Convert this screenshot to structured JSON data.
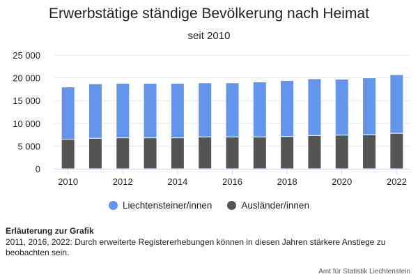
{
  "title": "Erwerbstätige ständige Bevölkerung nach Heimat",
  "subtitle": "seit 2010",
  "colors": {
    "liechtensteiner": "#6495ED",
    "auslaender": "#545454",
    "grid": "#e6e6e6",
    "axis": "#ccd6eb"
  },
  "note": {
    "heading": "Erläuterung zur Grafik",
    "text": "2011, 2016, 2022: Durch erweiterte Registererhebungen können in diesen Jahren stärkere Anstiege zu beobachten sein."
  },
  "credits": "Amt für Statistik Liechtenstein",
  "chart_data": {
    "type": "bar",
    "stacked": true,
    "categories": [
      2010,
      2011,
      2012,
      2013,
      2014,
      2015,
      2016,
      2017,
      2018,
      2019,
      2020,
      2021,
      2022
    ],
    "x_tick_labels": [
      "2010",
      "2012",
      "2014",
      "2016",
      "2018",
      "2020",
      "2022"
    ],
    "y_tick_labels": [
      "0",
      "5 000",
      "10 000",
      "15 000",
      "20 000",
      "25 000"
    ],
    "ylim": [
      0,
      25000
    ],
    "grid": true,
    "legend_position": "bottom",
    "series": [
      {
        "name": "Liechtensteiner/innen",
        "values": [
          11500,
          12000,
          12000,
          12000,
          12000,
          11900,
          11900,
          12100,
          12300,
          12500,
          12300,
          12500,
          12900
        ]
      },
      {
        "name": "Ausländer/innen",
        "values": [
          6500,
          6700,
          6800,
          6800,
          6800,
          7000,
          7000,
          7000,
          7100,
          7300,
          7400,
          7500,
          7800
        ]
      }
    ]
  }
}
